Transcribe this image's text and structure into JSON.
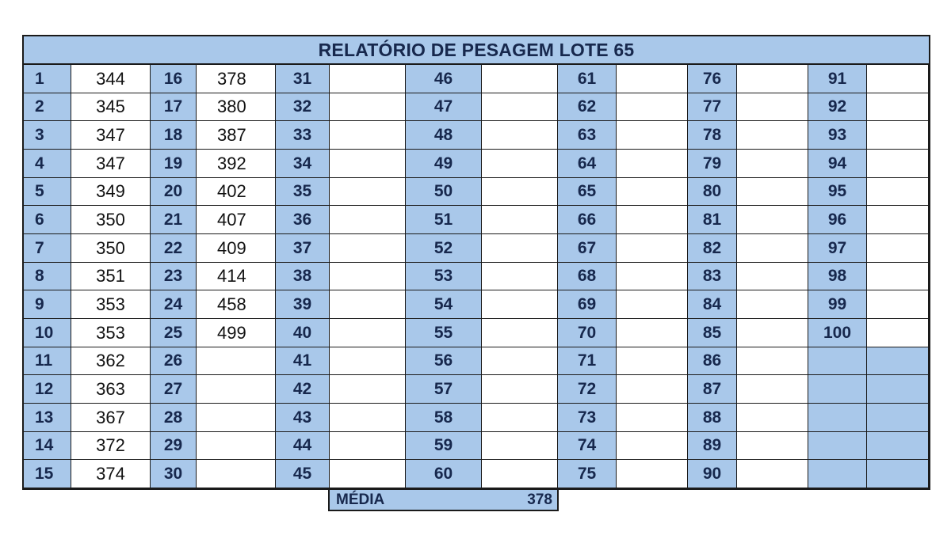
{
  "report": {
    "title": "RELATÓRIO DE PESAGEM LOTE  65",
    "average_label": "MÉDIA",
    "average_value": "378"
  },
  "columns": [
    {
      "rows": [
        {
          "n": "1",
          "w": "344"
        },
        {
          "n": "2",
          "w": "345"
        },
        {
          "n": "3",
          "w": "347"
        },
        {
          "n": "4",
          "w": "347"
        },
        {
          "n": "5",
          "w": "349"
        },
        {
          "n": "6",
          "w": "350"
        },
        {
          "n": "7",
          "w": "350"
        },
        {
          "n": "8",
          "w": "351"
        },
        {
          "n": "9",
          "w": "353"
        },
        {
          "n": "10",
          "w": "353"
        },
        {
          "n": "11",
          "w": "362"
        },
        {
          "n": "12",
          "w": "363"
        },
        {
          "n": "13",
          "w": "367"
        },
        {
          "n": "14",
          "w": "372"
        },
        {
          "n": "15",
          "w": "374"
        }
      ]
    },
    {
      "rows": [
        {
          "n": "16",
          "w": "378"
        },
        {
          "n": "17",
          "w": "380"
        },
        {
          "n": "18",
          "w": "387"
        },
        {
          "n": "19",
          "w": "392"
        },
        {
          "n": "20",
          "w": "402"
        },
        {
          "n": "21",
          "w": "407"
        },
        {
          "n": "22",
          "w": "409"
        },
        {
          "n": "23",
          "w": "414"
        },
        {
          "n": "24",
          "w": "458"
        },
        {
          "n": "25",
          "w": "499"
        },
        {
          "n": "26",
          "w": ""
        },
        {
          "n": "27",
          "w": ""
        },
        {
          "n": "28",
          "w": ""
        },
        {
          "n": "29",
          "w": ""
        },
        {
          "n": "30",
          "w": ""
        }
      ]
    },
    {
      "rows": [
        {
          "n": "31",
          "w": ""
        },
        {
          "n": "32",
          "w": ""
        },
        {
          "n": "33",
          "w": ""
        },
        {
          "n": "34",
          "w": ""
        },
        {
          "n": "35",
          "w": ""
        },
        {
          "n": "36",
          "w": ""
        },
        {
          "n": "37",
          "w": ""
        },
        {
          "n": "38",
          "w": ""
        },
        {
          "n": "39",
          "w": ""
        },
        {
          "n": "40",
          "w": ""
        },
        {
          "n": "41",
          "w": ""
        },
        {
          "n": "42",
          "w": ""
        },
        {
          "n": "43",
          "w": ""
        },
        {
          "n": "44",
          "w": ""
        },
        {
          "n": "45",
          "w": ""
        }
      ]
    },
    {
      "rows": [
        {
          "n": "46",
          "w": ""
        },
        {
          "n": "47",
          "w": ""
        },
        {
          "n": "48",
          "w": ""
        },
        {
          "n": "49",
          "w": ""
        },
        {
          "n": "50",
          "w": ""
        },
        {
          "n": "51",
          "w": ""
        },
        {
          "n": "52",
          "w": ""
        },
        {
          "n": "53",
          "w": ""
        },
        {
          "n": "54",
          "w": ""
        },
        {
          "n": "55",
          "w": ""
        },
        {
          "n": "56",
          "w": ""
        },
        {
          "n": "57",
          "w": ""
        },
        {
          "n": "58",
          "w": ""
        },
        {
          "n": "59",
          "w": ""
        },
        {
          "n": "60",
          "w": ""
        }
      ]
    },
    {
      "rows": [
        {
          "n": "61",
          "w": ""
        },
        {
          "n": "62",
          "w": ""
        },
        {
          "n": "63",
          "w": ""
        },
        {
          "n": "64",
          "w": ""
        },
        {
          "n": "65",
          "w": ""
        },
        {
          "n": "66",
          "w": ""
        },
        {
          "n": "67",
          "w": ""
        },
        {
          "n": "68",
          "w": ""
        },
        {
          "n": "69",
          "w": ""
        },
        {
          "n": "70",
          "w": ""
        },
        {
          "n": "71",
          "w": ""
        },
        {
          "n": "72",
          "w": ""
        },
        {
          "n": "73",
          "w": ""
        },
        {
          "n": "74",
          "w": ""
        },
        {
          "n": "75",
          "w": ""
        }
      ]
    },
    {
      "rows": [
        {
          "n": "76",
          "w": ""
        },
        {
          "n": "77",
          "w": ""
        },
        {
          "n": "78",
          "w": ""
        },
        {
          "n": "79",
          "w": ""
        },
        {
          "n": "80",
          "w": ""
        },
        {
          "n": "81",
          "w": ""
        },
        {
          "n": "82",
          "w": ""
        },
        {
          "n": "83",
          "w": ""
        },
        {
          "n": "84",
          "w": ""
        },
        {
          "n": "85",
          "w": ""
        },
        {
          "n": "86",
          "w": ""
        },
        {
          "n": "87",
          "w": ""
        },
        {
          "n": "88",
          "w": ""
        },
        {
          "n": "89",
          "w": ""
        },
        {
          "n": "90",
          "w": ""
        }
      ]
    },
    {
      "rows": [
        {
          "n": "91",
          "w": ""
        },
        {
          "n": "92",
          "w": ""
        },
        {
          "n": "93",
          "w": ""
        },
        {
          "n": "94",
          "w": ""
        },
        {
          "n": "95",
          "w": ""
        },
        {
          "n": "96",
          "w": ""
        },
        {
          "n": "97",
          "w": ""
        },
        {
          "n": "98",
          "w": ""
        },
        {
          "n": "99",
          "w": ""
        },
        {
          "n": "100",
          "w": ""
        },
        {
          "n": "",
          "w": ""
        },
        {
          "n": "",
          "w": ""
        },
        {
          "n": "",
          "w": ""
        },
        {
          "n": "",
          "w": ""
        },
        {
          "n": "",
          "w": ""
        }
      ]
    }
  ],
  "colors": {
    "header_fill": "#a9c8ea",
    "index_text": "#17284d",
    "border": "#1a1a1a"
  }
}
